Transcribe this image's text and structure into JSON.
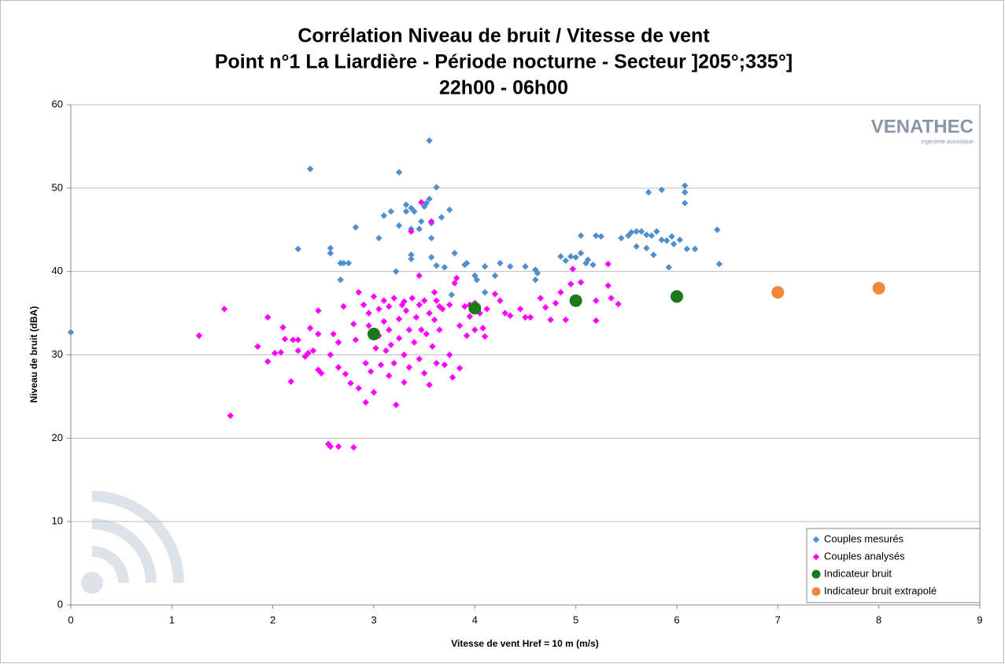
{
  "chart_data": {
    "type": "scatter",
    "title": "Corrélation Niveau de bruit / Vitesse de vent",
    "subtitle": [
      "Point n°1 La Liardière - Période nocturne - Secteur ]205°;335°]",
      "22h00 - 06h00"
    ],
    "logo": {
      "name": "VENATHEC",
      "tagline": "Ingénierie acoustique"
    },
    "x_label": "Vitesse de vent Href = 10 m (m/s)",
    "y_label": "Niveau de bruit (dBA)",
    "xlim": [
      0,
      9
    ],
    "xticks": [
      0,
      1,
      2,
      3,
      4,
      5,
      6,
      7,
      8,
      9
    ],
    "ylim": [
      0,
      60
    ],
    "yticks": [
      0,
      10,
      20,
      30,
      40,
      50,
      60
    ],
    "grid": true,
    "legend": "lower right",
    "series": [
      {
        "name": "Couples mesurés",
        "color": "#4f8fd0",
        "marker": "diamond",
        "x": [
          0,
          2.37,
          2.25,
          2.57,
          2.57,
          2.67,
          2.67,
          2.75,
          2.82,
          3.05,
          3.1,
          3.17,
          3.22,
          3.25,
          3.25,
          3.32,
          3.32,
          3.37,
          3.37,
          3.4,
          3.37,
          3.37,
          3.45,
          3.47,
          3.5,
          3.52,
          3.55,
          3.55,
          3.57,
          3.57,
          3.57,
          3.62,
          3.62,
          3.67,
          3.7,
          3.75,
          3.77,
          3.8,
          3.92,
          4,
          4.02,
          4.1,
          4.1,
          4.2,
          4.25,
          4.35,
          4.5,
          4.6,
          4.62,
          4.6,
          4.85,
          4.9,
          4.95,
          5,
          5.05,
          5.05,
          5.1,
          5.12,
          5.17,
          5.2,
          5.25,
          5.45,
          5.52,
          5.55,
          5.6,
          5.65,
          5.6,
          5.7,
          5.7,
          5.72,
          5.75,
          5.77,
          5.8,
          5.85,
          5.85,
          5.9,
          5.92,
          5.95,
          5.97,
          6.03,
          6.08,
          6.08,
          6.08,
          6.1,
          6.18,
          6.4,
          6.42,
          2.7,
          3.9,
          4.95
        ],
        "y": [
          32.7,
          52.3,
          42.7,
          42.8,
          42.2,
          41,
          39,
          41,
          45.3,
          44,
          46.7,
          47.2,
          40,
          45.5,
          51.9,
          47.2,
          48,
          47.6,
          45.1,
          47.2,
          42,
          41.5,
          45.1,
          46,
          47.8,
          48.2,
          48.7,
          55.7,
          45.8,
          44,
          41.7,
          50.1,
          40.7,
          46.5,
          40.5,
          47.4,
          37.2,
          42.2,
          41,
          39.5,
          39,
          40.6,
          37.5,
          39.5,
          41,
          40.6,
          40.6,
          40.2,
          39.8,
          39,
          41.8,
          41.3,
          41.8,
          41.7,
          44.3,
          42.2,
          41,
          41.4,
          40.8,
          44.3,
          44.2,
          44,
          44.3,
          44.7,
          44.8,
          44.8,
          43,
          44.4,
          42.8,
          49.5,
          44.3,
          42,
          44.8,
          49.8,
          43.8,
          43.7,
          40.5,
          44.2,
          43.3,
          43.8,
          50.3,
          49.5,
          48.2,
          42.7,
          42.7,
          45,
          40.9,
          41,
          40.8,
          38.5
        ]
      },
      {
        "name": "Couples analysés",
        "color": "#ff00ff",
        "marker": "diamond",
        "x": [
          1.27,
          1.52,
          1.58,
          1.85,
          1.95,
          1.95,
          2.02,
          2.08,
          2.1,
          2.12,
          2.18,
          2.2,
          2.25,
          2.25,
          2.32,
          2.35,
          2.37,
          2.4,
          2.45,
          2.45,
          2.48,
          2.45,
          2.55,
          2.57,
          2.57,
          2.6,
          2.65,
          2.65,
          2.65,
          2.7,
          2.72,
          2.77,
          2.8,
          2.8,
          2.82,
          2.85,
          2.85,
          2.9,
          2.92,
          2.92,
          2.95,
          2.95,
          2.97,
          3,
          3,
          3.02,
          3.05,
          3.05,
          3.07,
          3.1,
          3.1,
          3.12,
          3.15,
          3.15,
          3.17,
          3.2,
          3.2,
          3.22,
          3.25,
          3.25,
          3.28,
          3.3,
          3.3,
          3.32,
          3.35,
          3.35,
          3.37,
          3.38,
          3.4,
          3.42,
          3.45,
          3.45,
          3.47,
          3.47,
          3.5,
          3.5,
          3.52,
          3.55,
          3.55,
          3.57,
          3.58,
          3.6,
          3.62,
          3.62,
          3.65,
          3.68,
          3.7,
          3.75,
          3.75,
          3.78,
          3.8,
          3.82,
          3.85,
          3.85,
          3.9,
          3.92,
          3.95,
          4,
          4.05,
          4.08,
          4.1,
          4.12,
          4.2,
          4.25,
          4.3,
          4.35,
          4.45,
          4.5,
          4.55,
          4.65,
          4.7,
          4.75,
          4.8,
          4.85,
          4.9,
          4.95,
          4.97,
          5.05,
          5.2,
          5.2,
          5.32,
          5.32,
          5.35,
          5.42,
          3.15,
          3.3,
          3.45,
          3.65,
          4.0,
          3.95,
          3.6
        ],
        "y": [
          32.3,
          35.5,
          22.7,
          31,
          29.2,
          34.5,
          30.2,
          30.3,
          33.3,
          31.9,
          26.8,
          31.8,
          31.8,
          30.5,
          29.8,
          30.2,
          33.2,
          30.5,
          35.3,
          28.2,
          27.8,
          32.5,
          19.3,
          19,
          30,
          32.5,
          19,
          28.5,
          31.5,
          35.8,
          27.7,
          26.6,
          18.9,
          33.7,
          31.8,
          37.5,
          26,
          36,
          29,
          24.3,
          33.5,
          35,
          28,
          25.5,
          37,
          30.8,
          32.3,
          35.5,
          28.8,
          36.5,
          34,
          30.5,
          27.5,
          33,
          31.2,
          36.8,
          29,
          24,
          34.3,
          32,
          36,
          30,
          26.7,
          35.3,
          33,
          28.5,
          44.8,
          36.8,
          31.5,
          34.5,
          39.5,
          29.5,
          48.3,
          33,
          36.5,
          27.8,
          32.5,
          35,
          26.4,
          46,
          31,
          34.2,
          36.5,
          29,
          33,
          35.5,
          28.8,
          30,
          36,
          27.3,
          38.6,
          39.2,
          28.4,
          33.5,
          35.8,
          32.3,
          36,
          33,
          35,
          33.2,
          32.2,
          35.5,
          37.3,
          36.5,
          35,
          34.7,
          35.5,
          34.5,
          34.5,
          36.8,
          35.7,
          34.2,
          36.2,
          37.5,
          34.2,
          38.5,
          40.3,
          38.7,
          36.5,
          34.1,
          40.9,
          38.3,
          36.8,
          36.1,
          35.8,
          36.4,
          36,
          35.8,
          36.2,
          34.6,
          37.5
        ]
      },
      {
        "name": "Indicateur bruit",
        "color": "#1a7a1a",
        "marker": "circle",
        "x": [
          3,
          4,
          5,
          6
        ],
        "y": [
          32.5,
          35.6,
          36.5,
          37
        ]
      },
      {
        "name": "Indicateur bruit extrapolé",
        "color": "#f0883a",
        "marker": "circle",
        "x": [
          7,
          8
        ],
        "y": [
          37.5,
          38
        ]
      }
    ]
  }
}
